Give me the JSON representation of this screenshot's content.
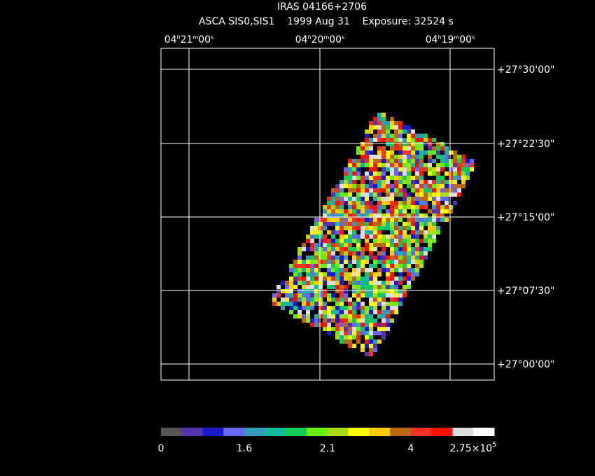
{
  "header": {
    "title": "IRAS 04166+2706",
    "subtitle": "ASCA SIS0,SIS1    1999 Aug 31    Exposure: 32524 s"
  },
  "ra_labels": [
    [
      "04",
      "h",
      "21",
      "m",
      "00",
      "s"
    ],
    [
      "04",
      "h",
      "20",
      "m",
      "00",
      "s"
    ],
    [
      "04",
      "h",
      "19",
      "m",
      "00",
      "s"
    ]
  ],
  "dec_labels": [
    "+27°30'00\"",
    "+27°22'30\"",
    "+27°15'00\"",
    "+27°07'30\"",
    "+27°00'00\""
  ],
  "colorbar": {
    "colors": [
      "#555555",
      "#5533aa",
      "#1a1acc",
      "#6666ff",
      "#3399bb",
      "#11bb99",
      "#11cc55",
      "#66ee11",
      "#aadd11",
      "#ffff00",
      "#ffcc00",
      "#bb6611",
      "#ee3322",
      "#ff1100",
      "#dddddd",
      "#ffffff"
    ],
    "labels": [
      "0",
      "1.6",
      "2.1",
      "4",
      [
        "2.75×10",
        "5"
      ]
    ]
  }
}
